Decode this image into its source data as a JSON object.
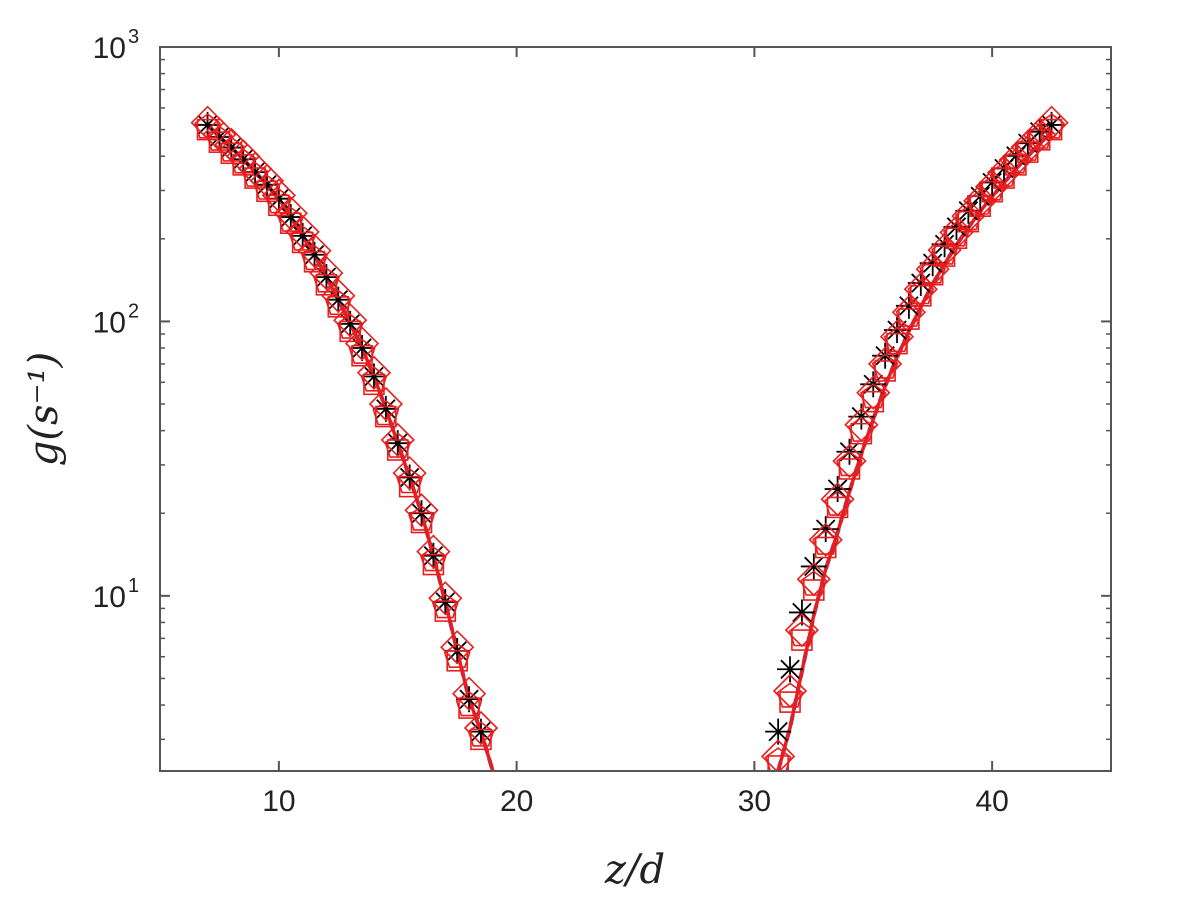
{
  "chart_data": {
    "type": "scatter",
    "xlabel": "z/d",
    "ylabel": "g(s⁻¹)",
    "xlim": [
      5,
      45
    ],
    "ylim": [
      2.3,
      1000
    ],
    "y_scale": "log",
    "x_ticks": [
      10,
      20,
      30,
      40
    ],
    "y_ticks": [
      {
        "value": 10,
        "base": "10",
        "exp": "1"
      },
      {
        "value": 100,
        "base": "10",
        "exp": "2"
      },
      {
        "value": 1000,
        "base": "10",
        "exp": "3"
      }
    ],
    "grid": false,
    "legend": "none",
    "series": [
      {
        "marker": "line-dashed",
        "color": "#1a3fd6",
        "x": [
          7,
          7.5,
          8,
          8.5,
          9,
          9.5,
          10,
          10.5,
          11,
          11.5,
          12,
          12.5,
          13,
          13.5,
          14,
          14.5,
          15,
          15.5,
          16,
          16.5,
          17,
          17.5,
          18,
          18.5,
          19
        ],
        "y": [
          520,
          470,
          430,
          390,
          350,
          315,
          280,
          240,
          205,
          175,
          145,
          120,
          98,
          80,
          63,
          48,
          36,
          27,
          20,
          14,
          9.5,
          6.3,
          4.2,
          3.2,
          2.3
        ]
      },
      {
        "marker": "line-solid",
        "color": "#e81e1e",
        "x": [
          7,
          7.5,
          8,
          8.5,
          9,
          9.5,
          10,
          10.5,
          11,
          11.5,
          12,
          12.5,
          13,
          13.5,
          14,
          14.5,
          15,
          15.5,
          16,
          16.5,
          17,
          17.5,
          18,
          18.5,
          19
        ],
        "y": [
          520,
          470,
          430,
          390,
          350,
          315,
          280,
          240,
          205,
          175,
          145,
          120,
          98,
          80,
          63,
          48,
          36,
          27,
          20,
          14,
          9.5,
          6.3,
          4.2,
          3.2,
          2.3
        ]
      },
      {
        "marker": "star",
        "color": "#000000",
        "x": [
          7,
          7.5,
          8,
          8.5,
          9,
          9.5,
          10,
          10.5,
          11,
          11.5,
          12,
          12.5,
          13,
          13.5,
          14,
          14.5,
          15,
          15.5,
          16,
          16.5,
          17,
          17.5,
          18,
          18.5
        ],
        "y": [
          520,
          470,
          430,
          390,
          350,
          315,
          280,
          240,
          205,
          175,
          145,
          120,
          98,
          80,
          63,
          48,
          36,
          27,
          20,
          14,
          9.5,
          6.3,
          4.2,
          3.2
        ]
      },
      {
        "marker": "diamond",
        "color": "#e81e1e",
        "x": [
          7,
          7.5,
          8,
          8.5,
          9,
          9.5,
          10,
          10.5,
          11,
          11.5,
          12,
          12.5,
          13,
          13.5,
          14,
          14.5,
          15,
          15.5,
          16,
          16.5,
          17,
          17.5,
          18,
          18.5
        ],
        "y": [
          530,
          480,
          440,
          400,
          360,
          325,
          288,
          248,
          212,
          181,
          150,
          124,
          101,
          83,
          65,
          50,
          37,
          28,
          20.5,
          14.5,
          9.8,
          6.5,
          4.4,
          3.3
        ]
      },
      {
        "marker": "pentagon",
        "color": "#e81e1e",
        "x": [
          7,
          7.5,
          8,
          8.5,
          9,
          9.5,
          10,
          10.5,
          11,
          11.5,
          12,
          12.5,
          13,
          13.5,
          14,
          14.5,
          15,
          15.5,
          16,
          16.5,
          17,
          17.5,
          18,
          18.5
        ],
        "y": [
          510,
          460,
          420,
          380,
          340,
          305,
          272,
          233,
          199,
          169,
          140,
          116,
          95,
          77,
          61,
          46,
          35,
          26,
          19,
          13.5,
          9.1,
          6,
          4,
          3.1
        ]
      },
      {
        "marker": "square",
        "color": "#e81e1e",
        "x": [
          7,
          7.5,
          8,
          8.5,
          9,
          9.5,
          10,
          10.5,
          11,
          11.5,
          12,
          12.5,
          13,
          13.5,
          14,
          14.5,
          15,
          15.5,
          16,
          16.5,
          17,
          17.5,
          18,
          18.5
        ],
        "y": [
          500,
          450,
          410,
          372,
          333,
          298,
          265,
          228,
          194,
          165,
          136,
          113,
          92,
          75,
          59,
          45,
          34,
          25,
          18.5,
          13,
          8.8,
          5.8,
          3.9,
          3
        ]
      },
      {
        "marker": "line-dashed",
        "color": "#1a3fd6",
        "x": [
          31,
          31.5,
          32,
          32.5,
          33,
          33.5,
          34,
          34.5,
          35,
          35.5,
          36,
          36.5,
          37,
          37.5,
          38,
          38.5,
          39,
          39.5,
          40,
          40.5,
          41,
          41.5,
          42,
          42.5
        ],
        "y": [
          2.3,
          3.3,
          5.3,
          8.5,
          12.5,
          17,
          24,
          33,
          44,
          58,
          74,
          92,
          113,
          137,
          162,
          190,
          220,
          252,
          285,
          320,
          360,
          400,
          445,
          490
        ]
      },
      {
        "marker": "line-solid",
        "color": "#e81e1e",
        "x": [
          31,
          31.5,
          32,
          32.5,
          33,
          33.5,
          34,
          34.5,
          35,
          35.5,
          36,
          36.5,
          37,
          37.5,
          38,
          38.5,
          39,
          39.5,
          40,
          40.5,
          41,
          41.5,
          42,
          42.5
        ],
        "y": [
          2.3,
          3.3,
          5.3,
          8.5,
          12.5,
          17,
          24,
          33,
          44,
          58,
          74,
          92,
          113,
          137,
          162,
          190,
          220,
          252,
          285,
          320,
          360,
          400,
          445,
          490
        ]
      },
      {
        "marker": "star",
        "color": "#000000",
        "x": [
          31,
          31.5,
          32,
          32.5,
          33,
          33.5,
          34,
          34.5,
          35,
          35.5,
          36,
          36.5,
          37,
          37.5,
          38,
          38.5,
          39,
          39.5,
          40,
          40.5,
          41,
          41.5,
          42,
          42.5
        ],
        "y": [
          3.2,
          5.4,
          8.7,
          12.8,
          17.5,
          24.5,
          33.5,
          45,
          59,
          75,
          93,
          114,
          138,
          163,
          191,
          221,
          253,
          286,
          321,
          361,
          401,
          446,
          491,
          520
        ]
      },
      {
        "marker": "diamond",
        "color": "#e81e1e",
        "x": [
          31,
          31.5,
          32,
          32.5,
          33,
          33.5,
          34,
          34.5,
          35,
          35.5,
          36,
          36.5,
          37,
          37.5,
          38,
          38.5,
          39,
          39.5,
          40,
          40.5,
          41,
          41.5,
          42,
          42.5
        ],
        "y": [
          2.6,
          4.5,
          7.5,
          11.5,
          16,
          22.5,
          31,
          42,
          55,
          70,
          88,
          108,
          131,
          155,
          182,
          211,
          242,
          275,
          310,
          348,
          388,
          432,
          478,
          530
        ]
      },
      {
        "marker": "pentagon",
        "color": "#e81e1e",
        "x": [
          31,
          31.5,
          32,
          32.5,
          33,
          33.5,
          34,
          34.5,
          35,
          35.5,
          36,
          36.5,
          37,
          37.5,
          38,
          38.5,
          39,
          39.5,
          40,
          40.5,
          41,
          41.5,
          42,
          42.5
        ],
        "y": [
          2.5,
          4.3,
          7.2,
          11,
          15.5,
          21.5,
          30,
          40,
          53,
          68,
          85,
          105,
          127,
          151,
          177,
          206,
          236,
          269,
          303,
          340,
          380,
          423,
          468,
          510
        ]
      },
      {
        "marker": "square",
        "color": "#e81e1e",
        "x": [
          31,
          31.5,
          32,
          32.5,
          33,
          33.5,
          34,
          34.5,
          35,
          35.5,
          36,
          36.5,
          37,
          37.5,
          38,
          38.5,
          39,
          39.5,
          40,
          40.5,
          41,
          41.5,
          42,
          42.5
        ],
        "y": [
          2.4,
          4.1,
          6.9,
          10.5,
          15,
          21,
          29,
          39,
          51,
          66,
          83,
          102,
          124,
          148,
          173,
          201,
          231,
          263,
          297,
          333,
          372,
          414,
          459,
          500
        ]
      }
    ]
  }
}
